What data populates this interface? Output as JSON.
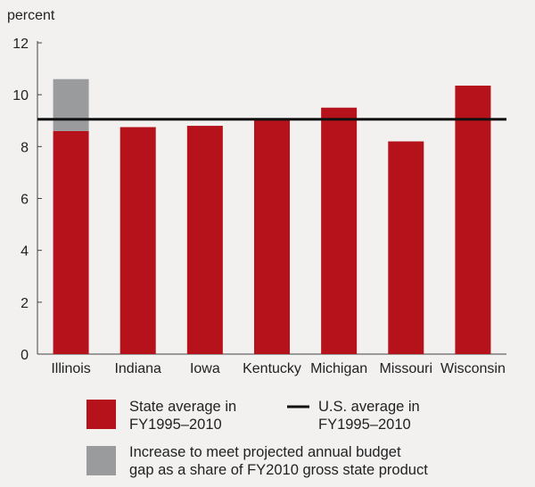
{
  "chart_data": {
    "type": "bar",
    "stacked": true,
    "ylabel": "percent",
    "ylim": [
      0,
      12
    ],
    "yticks": [
      0,
      2,
      4,
      6,
      8,
      10,
      12
    ],
    "categories": [
      "Illinois",
      "Indiana",
      "Iowa",
      "Kentucky",
      "Michigan",
      "Missouri",
      "Wisconsin"
    ],
    "series": [
      {
        "name": "State average in FY1995–2010",
        "color": "#b5121b",
        "values": [
          8.6,
          8.75,
          8.8,
          9.05,
          9.5,
          8.2,
          10.35
        ]
      },
      {
        "name": "Increase to meet projected annual budget gap as a share of FY2010 gross state product",
        "color": "#9a9b9d",
        "values": [
          2.0,
          0,
          0,
          0,
          0,
          0,
          0
        ]
      }
    ],
    "reference_line": {
      "name": "U.S. average in FY1995–2010",
      "value": 9.05,
      "color": "#111111"
    },
    "legend": [
      {
        "kind": "swatch",
        "color": "#b5121b",
        "lines": [
          "State average in",
          "FY1995–2010"
        ]
      },
      {
        "kind": "line",
        "color": "#111111",
        "lines": [
          "U.S. average in",
          "FY1995–2010"
        ]
      },
      {
        "kind": "swatch",
        "color": "#9a9b9d",
        "lines": [
          "Increase to meet projected annual budget",
          "gap as a share of FY2010 gross state product"
        ]
      }
    ]
  }
}
